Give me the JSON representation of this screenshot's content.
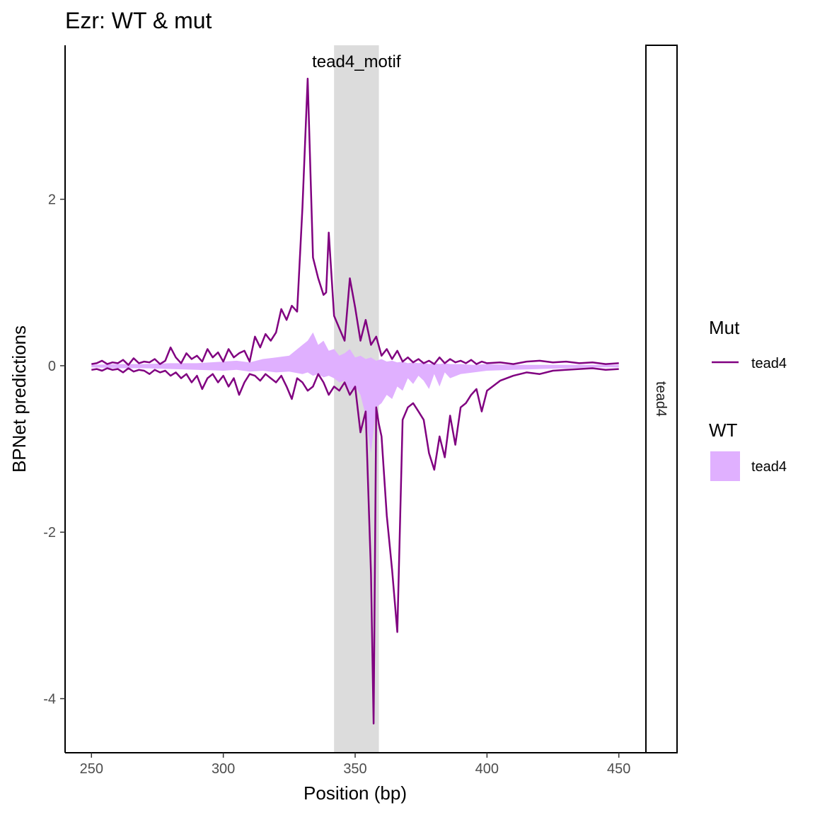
{
  "chart_data": {
    "type": "line",
    "title": "Ezr: WT & mut",
    "xlabel": "Position (bp)",
    "ylabel": "BPNet predictions",
    "xlim": [
      240,
      460
    ],
    "ylim": [
      -4.65,
      3.85
    ],
    "x_ticks": [
      250,
      300,
      350,
      400,
      450
    ],
    "y_ticks": [
      2,
      0,
      -2,
      -4
    ],
    "x_tick_labels": [
      "250",
      "300",
      "350",
      "400",
      "450"
    ],
    "y_tick_labels": [
      "2",
      "0",
      "-2",
      "-4"
    ],
    "grid": false,
    "facet_label": "tead4",
    "annotation": {
      "label": "tead4_motif",
      "x_start": 342,
      "x_end": 359,
      "color": "#DCDCDC"
    },
    "legend": {
      "position": "right",
      "groups": [
        {
          "title": "Mut",
          "entries": [
            {
              "label": "tead4",
              "kind": "line",
              "color": "#800080"
            }
          ]
        },
        {
          "title": "WT",
          "entries": [
            {
              "label": "tead4",
              "kind": "fill",
              "color": "#E0B0FF"
            }
          ]
        }
      ]
    },
    "series": [
      {
        "name": "tead4",
        "group": "Mut",
        "strand": "positive",
        "color": "#800080",
        "x": [
          250,
          252,
          254,
          256,
          258,
          260,
          262,
          264,
          266,
          268,
          270,
          272,
          274,
          276,
          278,
          280,
          282,
          284,
          286,
          288,
          290,
          292,
          294,
          296,
          298,
          300,
          302,
          304,
          306,
          308,
          310,
          312,
          314,
          316,
          318,
          320,
          322,
          324,
          326,
          328,
          330,
          332,
          334,
          336,
          338,
          339,
          340,
          342,
          344,
          346,
          348,
          350,
          352,
          354,
          356,
          358,
          360,
          362,
          364,
          366,
          368,
          370,
          372,
          374,
          376,
          378,
          380,
          382,
          384,
          386,
          388,
          390,
          392,
          394,
          396,
          398,
          400,
          405,
          410,
          415,
          420,
          425,
          430,
          435,
          440,
          445,
          450
        ],
        "values": [
          0.02,
          0.03,
          0.06,
          0.02,
          0.04,
          0.03,
          0.07,
          0.01,
          0.09,
          0.03,
          0.05,
          0.04,
          0.08,
          0.02,
          0.06,
          0.22,
          0.1,
          0.03,
          0.15,
          0.08,
          0.12,
          0.05,
          0.2,
          0.1,
          0.16,
          0.05,
          0.2,
          0.1,
          0.15,
          0.18,
          0.05,
          0.35,
          0.22,
          0.38,
          0.3,
          0.4,
          0.68,
          0.55,
          0.72,
          0.65,
          1.9,
          3.45,
          1.3,
          1.05,
          0.85,
          0.88,
          1.6,
          0.6,
          0.45,
          0.3,
          1.05,
          0.7,
          0.3,
          0.55,
          0.25,
          0.35,
          0.12,
          0.2,
          0.08,
          0.18,
          0.05,
          0.1,
          0.04,
          0.08,
          0.03,
          0.06,
          0.02,
          0.1,
          0.03,
          0.08,
          0.04,
          0.06,
          0.03,
          0.07,
          0.02,
          0.05,
          0.03,
          0.04,
          0.02,
          0.05,
          0.06,
          0.04,
          0.05,
          0.03,
          0.04,
          0.02,
          0.03
        ]
      },
      {
        "name": "tead4",
        "group": "Mut",
        "strand": "negative",
        "color": "#800080",
        "x": [
          250,
          252,
          254,
          256,
          258,
          260,
          262,
          264,
          266,
          268,
          270,
          272,
          274,
          276,
          278,
          280,
          282,
          284,
          286,
          288,
          290,
          292,
          294,
          296,
          298,
          300,
          302,
          304,
          306,
          308,
          310,
          312,
          314,
          316,
          318,
          320,
          322,
          324,
          326,
          328,
          330,
          332,
          334,
          336,
          338,
          340,
          342,
          344,
          346,
          348,
          350,
          352,
          354,
          356,
          357,
          358,
          359,
          360,
          362,
          364,
          366,
          368,
          370,
          372,
          374,
          376,
          378,
          380,
          382,
          384,
          386,
          388,
          390,
          392,
          394,
          396,
          398,
          400,
          405,
          410,
          415,
          420,
          425,
          430,
          435,
          440,
          445,
          450
        ],
        "values": [
          -0.05,
          -0.04,
          -0.06,
          -0.03,
          -0.05,
          -0.04,
          -0.08,
          -0.03,
          -0.07,
          -0.05,
          -0.06,
          -0.1,
          -0.05,
          -0.08,
          -0.06,
          -0.12,
          -0.08,
          -0.15,
          -0.1,
          -0.2,
          -0.12,
          -0.28,
          -0.15,
          -0.1,
          -0.2,
          -0.12,
          -0.25,
          -0.15,
          -0.35,
          -0.2,
          -0.1,
          -0.12,
          -0.18,
          -0.1,
          -0.15,
          -0.2,
          -0.12,
          -0.25,
          -0.4,
          -0.15,
          -0.2,
          -0.3,
          -0.25,
          -0.1,
          -0.2,
          -0.35,
          -0.25,
          -0.3,
          -0.2,
          -0.35,
          -0.25,
          -0.8,
          -0.55,
          -2.5,
          -4.3,
          -0.5,
          -0.7,
          -0.85,
          -1.8,
          -2.45,
          -3.2,
          -0.65,
          -0.5,
          -0.45,
          -0.55,
          -0.65,
          -1.05,
          -1.25,
          -0.85,
          -1.1,
          -0.6,
          -0.95,
          -0.5,
          -0.45,
          -0.35,
          -0.28,
          -0.55,
          -0.3,
          -0.18,
          -0.12,
          -0.08,
          -0.1,
          -0.06,
          -0.05,
          -0.04,
          -0.03,
          -0.05,
          -0.04
        ]
      },
      {
        "name": "tead4",
        "group": "WT",
        "color": "#E0B0FF",
        "x": [
          250,
          260,
          270,
          280,
          290,
          300,
          305,
          310,
          315,
          320,
          325,
          330,
          332,
          334,
          336,
          338,
          340,
          342,
          344,
          346,
          348,
          350,
          352,
          354,
          356,
          358,
          360,
          362,
          364,
          366,
          368,
          370,
          372,
          374,
          376,
          378,
          380,
          382,
          384,
          386,
          390,
          395,
          400,
          410,
          420,
          430,
          440,
          450
        ],
        "upper": [
          0.01,
          0.02,
          0.02,
          0.03,
          0.03,
          0.05,
          0.06,
          0.04,
          0.08,
          0.1,
          0.12,
          0.25,
          0.3,
          0.4,
          0.25,
          0.3,
          0.18,
          0.2,
          0.12,
          0.15,
          0.2,
          0.1,
          0.12,
          0.08,
          0.1,
          0.06,
          0.08,
          0.05,
          0.06,
          0.04,
          0.05,
          0.03,
          0.04,
          0.03,
          0.04,
          0.02,
          0.03,
          0.02,
          0.03,
          0.02,
          0.02,
          0.01,
          0.02,
          0.01,
          0.01,
          0.01,
          0.01,
          0.01
        ],
        "lower": [
          -0.02,
          -0.03,
          -0.03,
          -0.04,
          -0.05,
          -0.06,
          -0.05,
          -0.07,
          -0.06,
          -0.08,
          -0.07,
          -0.1,
          -0.08,
          -0.12,
          -0.1,
          -0.14,
          -0.12,
          -0.15,
          -0.2,
          -0.18,
          -0.3,
          -0.25,
          -0.35,
          -0.6,
          -1.05,
          -0.5,
          -0.45,
          -0.35,
          -0.4,
          -0.25,
          -0.3,
          -0.15,
          -0.22,
          -0.12,
          -0.18,
          -0.28,
          -0.1,
          -0.25,
          -0.08,
          -0.15,
          -0.1,
          -0.08,
          -0.06,
          -0.05,
          -0.04,
          -0.03,
          -0.02,
          -0.02
        ]
      }
    ]
  }
}
